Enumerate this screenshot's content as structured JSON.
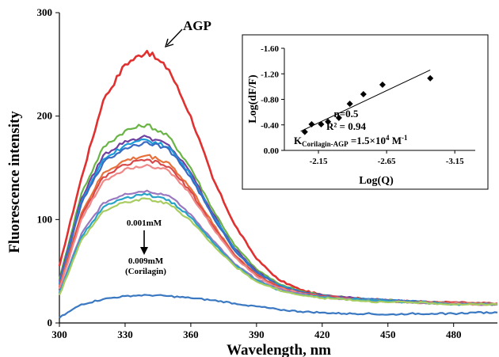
{
  "chart_data": [
    {
      "type": "line",
      "title": "",
      "xlabel": "Wavelength, nm",
      "ylabel": "Fluorescence intensity",
      "xlim": [
        300,
        500
      ],
      "ylim": [
        0,
        300
      ],
      "x_ticks": [
        300,
        330,
        360,
        390,
        420,
        450,
        480
      ],
      "y_ticks": [
        0,
        100,
        200,
        300
      ],
      "grid": false,
      "x": [
        300,
        310,
        320,
        330,
        340,
        350,
        360,
        370,
        380,
        390,
        400,
        410,
        420,
        430,
        440,
        450,
        460,
        470,
        480,
        490,
        500
      ],
      "series": [
        {
          "name": "AGP",
          "color": "#e03030",
          "values": [
            55,
            140,
            215,
            250,
            263,
            245,
            200,
            140,
            95,
            62,
            42,
            32,
            27,
            25,
            23,
            22,
            21,
            20,
            20,
            19,
            19
          ]
        },
        {
          "name": "",
          "color": "#6ab446",
          "values": [
            42,
            125,
            170,
            186,
            192,
            180,
            150,
            110,
            75,
            52,
            38,
            31,
            27,
            25,
            23,
            22,
            21,
            20,
            19,
            19,
            18
          ]
        },
        {
          "name": "",
          "color": "#7040a0",
          "values": [
            40,
            120,
            162,
            176,
            180,
            172,
            145,
            106,
            72,
            50,
            37,
            30,
            27,
            25,
            23,
            22,
            21,
            20,
            19,
            19,
            18
          ]
        },
        {
          "name": "",
          "color": "#1a9cd8",
          "values": [
            38,
            117,
            158,
            172,
            177,
            170,
            143,
            104,
            71,
            49,
            37,
            30,
            26,
            24,
            23,
            22,
            21,
            20,
            19,
            19,
            18
          ]
        },
        {
          "name": "",
          "color": "#3a6bc4",
          "values": [
            37,
            115,
            155,
            169,
            175,
            168,
            141,
            103,
            70,
            49,
            36,
            30,
            26,
            24,
            23,
            22,
            21,
            20,
            19,
            19,
            18
          ]
        },
        {
          "name": "",
          "color": "#e8703a",
          "values": [
            35,
            106,
            145,
            157,
            162,
            155,
            130,
            96,
            66,
            47,
            35,
            29,
            26,
            24,
            22,
            21,
            20,
            20,
            19,
            19,
            18
          ]
        },
        {
          "name": "",
          "color": "#d94a4a",
          "values": [
            34,
            103,
            141,
            153,
            158,
            151,
            127,
            94,
            65,
            46,
            35,
            29,
            26,
            24,
            22,
            21,
            20,
            19,
            19,
            18,
            18
          ]
        },
        {
          "name": "",
          "color": "#f08888",
          "values": [
            33,
            100,
            137,
            149,
            153,
            147,
            124,
            92,
            64,
            45,
            34,
            29,
            25,
            23,
            22,
            21,
            20,
            19,
            19,
            18,
            18
          ]
        },
        {
          "name": "",
          "color": "#9a78c0",
          "values": [
            30,
            86,
            116,
            125,
            128,
            123,
            105,
            80,
            57,
            42,
            33,
            28,
            25,
            23,
            22,
            21,
            20,
            19,
            18,
            18,
            18
          ]
        },
        {
          "name": "",
          "color": "#27a3c8",
          "values": [
            29,
            83,
            112,
            121,
            124,
            119,
            102,
            78,
            56,
            41,
            32,
            27,
            25,
            23,
            22,
            21,
            20,
            19,
            18,
            18,
            18
          ]
        },
        {
          "name": "",
          "color": "#a8cc60",
          "values": [
            27,
            80,
            108,
            117,
            120,
            115,
            99,
            76,
            55,
            40,
            32,
            27,
            24,
            23,
            21,
            20,
            20,
            19,
            18,
            18,
            18
          ]
        },
        {
          "name": "",
          "color": "#3a78c2",
          "values": [
            5,
            18,
            23,
            26,
            27,
            26,
            24,
            22,
            19,
            16,
            13,
            11,
            10,
            9,
            9,
            8,
            9,
            9,
            9,
            10,
            10
          ]
        }
      ],
      "annotations": {
        "agp_label": "AGP",
        "conc_start": "0.001mM",
        "conc_end": "0.009mM",
        "conc_compound": "(Corilagin)"
      }
    },
    {
      "type": "scatter",
      "title": "",
      "xlabel": "Log(Q)",
      "ylabel": "Log(dF/F)",
      "xlim": [
        -1.9,
        -3.3
      ],
      "ylim": [
        0.0,
        -1.6
      ],
      "x_ticks": [
        "-2.15",
        "-2.65",
        "-3.15"
      ],
      "y_ticks": [
        "0.00",
        "-0.40",
        "-0.80",
        "-1.20",
        "-1.60"
      ],
      "points": [
        {
          "x": -2.05,
          "y": -0.29
        },
        {
          "x": -2.1,
          "y": -0.41
        },
        {
          "x": -2.17,
          "y": -0.41
        },
        {
          "x": -2.22,
          "y": -0.45
        },
        {
          "x": -2.3,
          "y": -0.51
        },
        {
          "x": -2.38,
          "y": -0.73
        },
        {
          "x": -2.48,
          "y": -0.88
        },
        {
          "x": -2.62,
          "y": -1.03
        },
        {
          "x": -2.97,
          "y": -1.13
        }
      ],
      "trendline": {
        "x": [
          -2.02,
          -2.97
        ],
        "y": [
          -0.3,
          -1.26
        ]
      },
      "stats": {
        "n_text": "n=0.5",
        "r2_text": "R² = 0.94",
        "k_prefix": "K",
        "k_sub": "Corilagin-AGP",
        "k_value": " =1.5×10",
        "k_exp": "4",
        "k_unit": " M",
        "k_unit_exp": "-1"
      }
    }
  ]
}
